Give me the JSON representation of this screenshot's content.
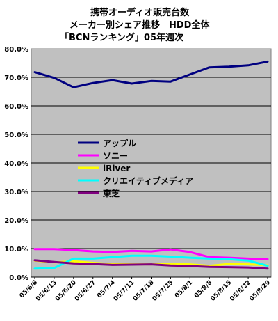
{
  "chart_data": {
    "type": "line",
    "title": [
      "携帯オーディオ販売台数",
      "メーカー別シェア推移　HDD全体",
      "「BCNランキング」05年週次"
    ],
    "x": [
      "05/6/6",
      "05/6/13",
      "05/6/20",
      "05/6/27",
      "05/7/4",
      "05/7/11",
      "05/7/18",
      "05/7/25",
      "05/8/1",
      "05/8/8",
      "05/8/15",
      "05/8/22",
      "05/8/29"
    ],
    "y_ticks": [
      "0.0%",
      "10.0%",
      "20.0%",
      "30.0%",
      "40.0%",
      "50.0%",
      "60.0%",
      "70.0%",
      "80.0%"
    ],
    "ylim": [
      0,
      80
    ],
    "grid": "horizontal",
    "plot_background": "#c0c0c0",
    "legend_position": "center-left, inside plot",
    "series": [
      {
        "name": "アップル",
        "color": "#000080",
        "values": [
          71.8,
          69.8,
          66.5,
          68.0,
          69.0,
          67.8,
          68.7,
          68.5,
          71.0,
          73.5,
          73.7,
          74.2,
          75.5
        ]
      },
      {
        "name": "ソニー",
        "color": "#ff00ff",
        "values": [
          9.8,
          9.8,
          9.5,
          9.0,
          8.8,
          9.2,
          9.0,
          9.7,
          8.8,
          7.0,
          6.8,
          6.5,
          6.3
        ]
      },
      {
        "name": "iRiver",
        "color": "#ffff00",
        "values": [
          5.8,
          5.2,
          5.5,
          5.0,
          4.6,
          4.5,
          4.5,
          4.6,
          4.5,
          4.0,
          4.6,
          4.5,
          4.2
        ]
      },
      {
        "name": "クリエイティブメディア",
        "color": "#00ffff",
        "values": [
          3.0,
          3.2,
          6.5,
          6.5,
          7.0,
          7.5,
          7.5,
          7.2,
          6.8,
          6.5,
          6.3,
          5.8,
          4.0
        ]
      },
      {
        "name": "東芝",
        "color": "#800080",
        "values": [
          5.9,
          5.3,
          4.8,
          4.6,
          4.3,
          4.4,
          4.5,
          4.1,
          3.9,
          3.6,
          3.5,
          3.4,
          3.0
        ]
      }
    ]
  }
}
